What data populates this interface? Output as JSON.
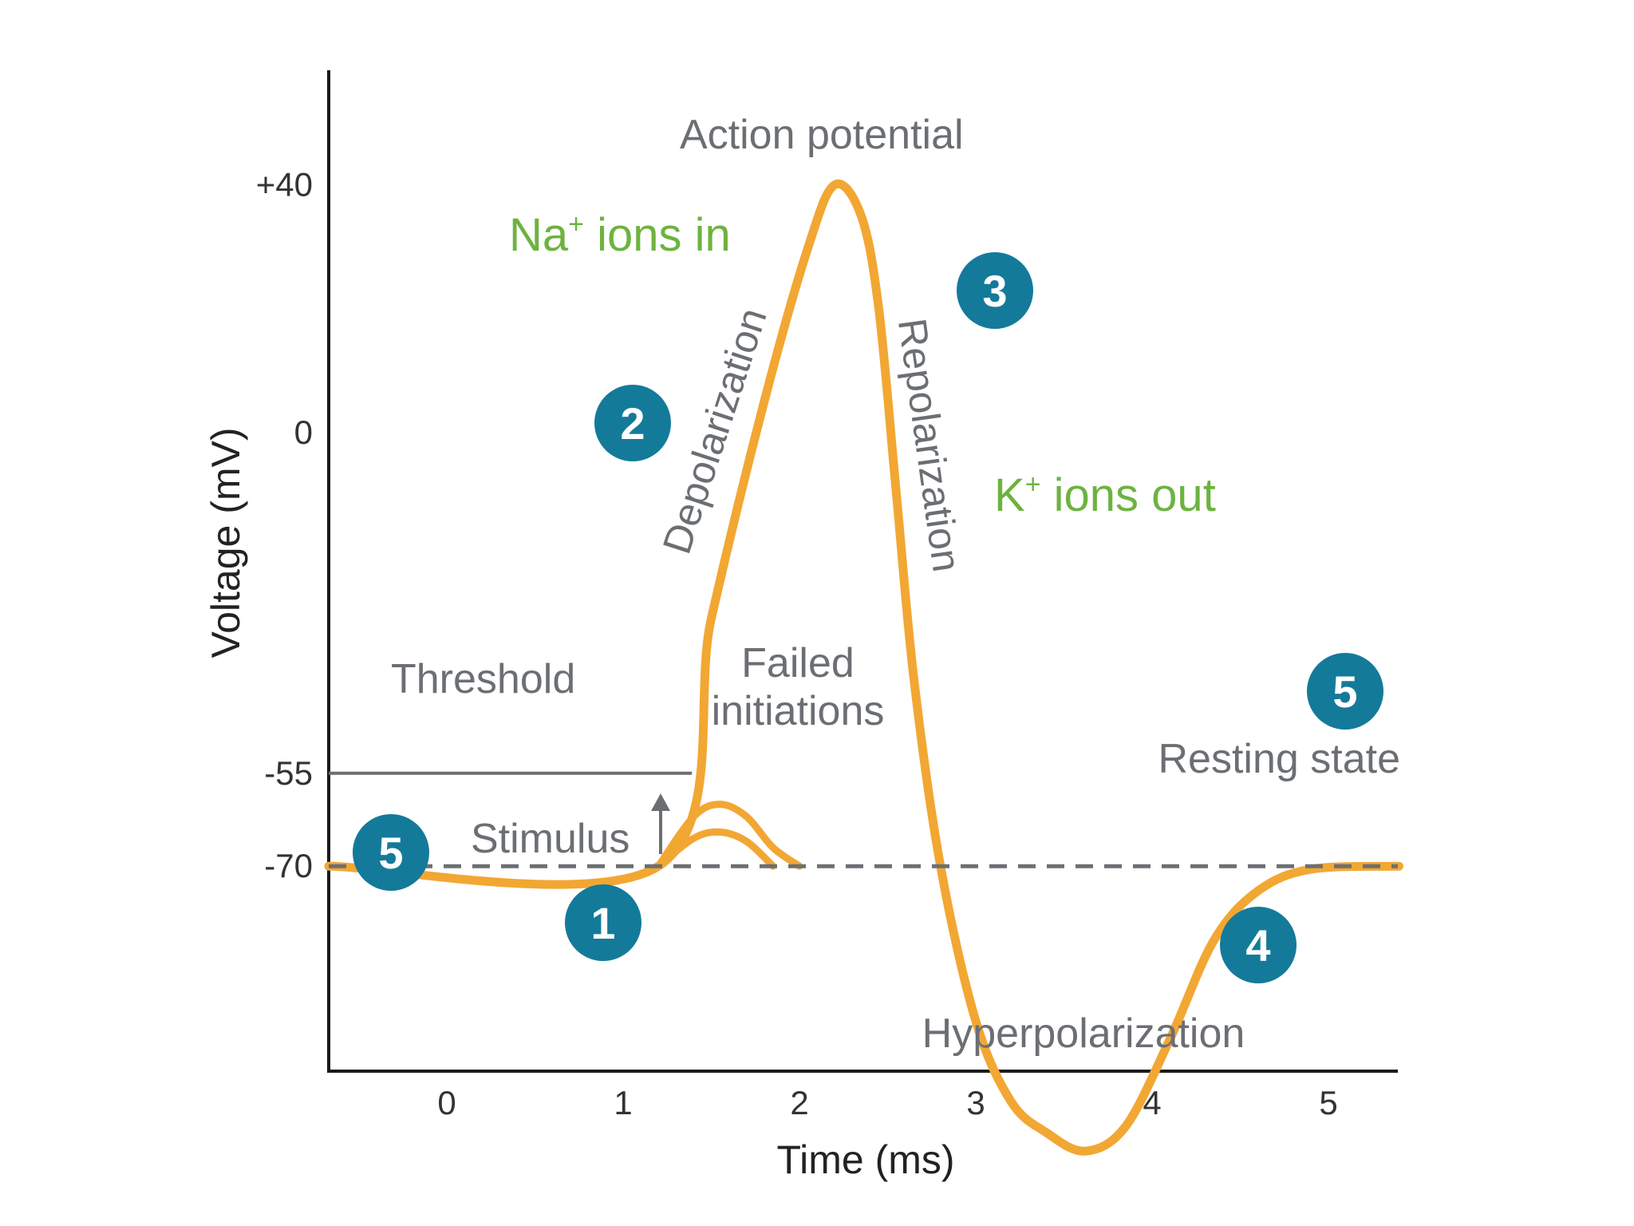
{
  "chart_data": {
    "type": "line",
    "title": "",
    "xlabel": "Time (ms)",
    "ylabel": "Voltage (mV)",
    "x_ticks": [
      "0",
      "1",
      "2",
      "3",
      "4",
      "5"
    ],
    "y_ticks": [
      "+40",
      "0",
      "-55",
      "-70"
    ],
    "xlim": [
      -0.67,
      5.4
    ],
    "ylim": [
      -125,
      80
    ],
    "threshold_mv": -55,
    "resting_mv": -70,
    "series": [
      {
        "points": [
          [
            -0.67,
            -70
          ],
          [
            1.2,
            -70
          ],
          [
            1.5,
            -30
          ],
          [
            1.8,
            5
          ],
          [
            2.05,
            30
          ],
          [
            2.2,
            40
          ],
          [
            2.35,
            35
          ],
          [
            2.45,
            20
          ],
          [
            2.55,
            -10
          ],
          [
            2.65,
            -40
          ],
          [
            2.8,
            -70
          ],
          [
            3.0,
            -95
          ],
          [
            3.2,
            -108
          ],
          [
            3.4,
            -113
          ],
          [
            3.62,
            -116
          ],
          [
            3.85,
            -112
          ],
          [
            4.1,
            -98
          ],
          [
            4.35,
            -82
          ],
          [
            4.6,
            -74
          ],
          [
            4.9,
            -70.5
          ],
          [
            5.4,
            -70
          ]
        ]
      },
      {
        "points": [
          [
            1.2,
            -70
          ],
          [
            1.4,
            -62
          ],
          [
            1.55,
            -60
          ],
          [
            1.7,
            -62
          ],
          [
            1.85,
            -67
          ],
          [
            2.0,
            -70
          ]
        ]
      },
      {
        "points": [
          [
            1.2,
            -70
          ],
          [
            1.4,
            -65.5
          ],
          [
            1.55,
            -64.5
          ],
          [
            1.7,
            -66
          ],
          [
            1.85,
            -70
          ]
        ]
      }
    ],
    "annotations": {
      "action_potential": "Action potential",
      "na_ions_prefix": "Na",
      "na_ions_sup": "+",
      "na_ions_suffix": " ions in",
      "k_ions_prefix": "K",
      "k_ions_sup": "+",
      "k_ions_suffix": " ions out",
      "depolarization": "Depolarization",
      "repolarization": "Repolarization",
      "threshold": "Threshold",
      "failed_line1": "Failed",
      "failed_line2": "initiations",
      "resting_state": "Resting state",
      "stimulus": "Stimulus",
      "hyperpolarization": "Hyperpolarization"
    },
    "phase_badges": [
      "1",
      "2",
      "3",
      "4",
      "5",
      "5"
    ],
    "colors": {
      "curve": "#f2a733",
      "badge": "#147a9a",
      "ion_text": "#6db33f",
      "label_text": "#6b6f73"
    }
  }
}
